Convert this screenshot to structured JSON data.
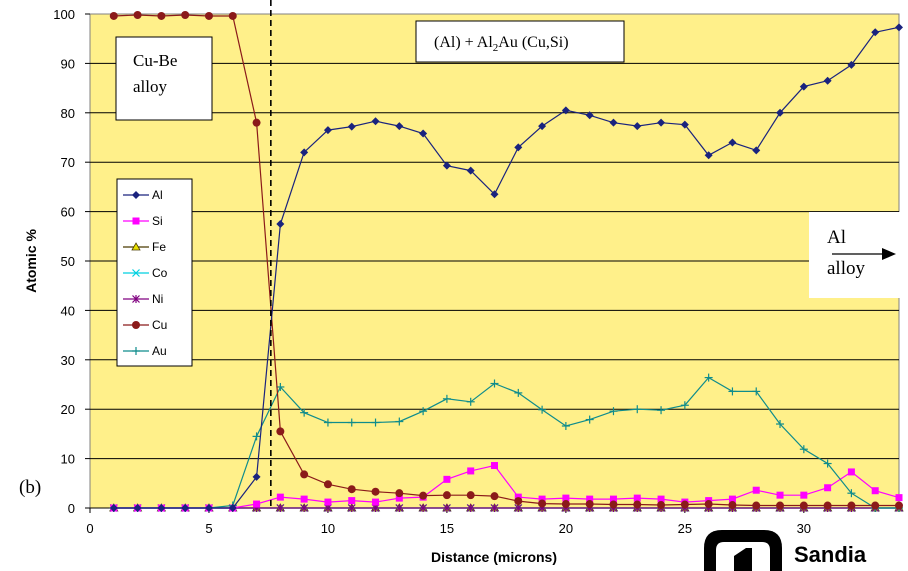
{
  "chart_data": {
    "type": "line",
    "xlabel": "Distance (microns)",
    "ylabel": "Atomic %",
    "xlim": [
      0,
      34
    ],
    "ylim": [
      0,
      100
    ],
    "x_ticks": [
      0,
      5,
      10,
      15,
      20,
      25,
      30
    ],
    "y_ticks": [
      0,
      10,
      20,
      30,
      40,
      50,
      60,
      70,
      80,
      90,
      100
    ],
    "grid": "horizontal",
    "background_color": "#FFF08A",
    "legend_position": "left-middle",
    "boundary_line_x": 7.6,
    "x": [
      1,
      2,
      3,
      4,
      5,
      6,
      7,
      8,
      9,
      10,
      11,
      12,
      13,
      14,
      15,
      16,
      17,
      18,
      19,
      20,
      21,
      22,
      23,
      24,
      25,
      26,
      27,
      28,
      29,
      30,
      31,
      32,
      33,
      34
    ],
    "series": [
      {
        "name": "Al",
        "color": "#1A237E",
        "marker": "diamond",
        "values": [
          0,
          0,
          0,
          0,
          0,
          0,
          6.3,
          57.5,
          72,
          76.5,
          77.2,
          78.3,
          77.3,
          75.8,
          69.3,
          68.3,
          63.5,
          73,
          77.3,
          80.5,
          79.5,
          78,
          77.3,
          78,
          77.6,
          71.4,
          74,
          72.4,
          80,
          85.3,
          86.5,
          89.7,
          96.3,
          97.3
        ]
      },
      {
        "name": "Si",
        "color": "#FF00FF",
        "marker": "square",
        "values": [
          0,
          0,
          0,
          0,
          0,
          0,
          0.8,
          2.2,
          1.8,
          1.2,
          1.5,
          1.2,
          2,
          2.2,
          5.8,
          7.5,
          8.6,
          2.2,
          1.8,
          2,
          1.8,
          1.8,
          2,
          1.8,
          1.2,
          1.5,
          1.8,
          3.6,
          2.6,
          2.6,
          4.1,
          7.3,
          3.5,
          2.1
        ]
      },
      {
        "name": "Fe",
        "color": "#4A3B00",
        "marker": "triangle",
        "values": [
          0,
          0,
          0,
          0,
          0,
          0,
          0,
          0,
          0,
          0,
          0,
          0,
          0,
          0,
          0,
          0,
          0,
          0,
          0,
          0,
          0,
          0,
          0,
          0,
          0,
          0,
          0,
          0,
          0,
          0,
          0,
          0,
          0,
          0
        ]
      },
      {
        "name": "Co",
        "color": "#00D0E0",
        "marker": "x",
        "values": [
          0,
          0,
          0,
          0,
          0,
          0,
          0,
          0,
          0,
          0,
          0,
          0,
          0,
          0,
          0,
          0,
          0,
          0,
          0,
          0,
          0,
          0,
          0,
          0,
          0,
          0,
          0,
          0,
          0,
          0,
          0,
          0,
          0,
          0
        ]
      },
      {
        "name": "Ni",
        "color": "#800080",
        "marker": "star",
        "values": [
          0,
          0,
          0,
          0,
          0,
          0,
          0,
          0,
          0,
          0,
          0,
          0,
          0,
          0,
          0,
          0,
          0,
          0,
          0,
          0,
          0,
          0,
          0,
          0,
          0,
          0,
          0,
          0,
          0,
          0,
          0,
          0,
          0,
          0
        ]
      },
      {
        "name": "Cu",
        "color": "#8B1A1A",
        "marker": "circle",
        "values": [
          99.6,
          99.8,
          99.6,
          99.8,
          99.6,
          99.6,
          78,
          15.5,
          6.8,
          4.8,
          3.8,
          3.3,
          3,
          2.5,
          2.6,
          2.6,
          2.4,
          1.4,
          0.9,
          0.8,
          0.8,
          0.7,
          0.7,
          0.6,
          0.7,
          0.8,
          0.6,
          0.5,
          0.5,
          0.5,
          0.5,
          0.5,
          0.5,
          0.5
        ]
      },
      {
        "name": "Au",
        "color": "#0F8C8C",
        "marker": "plus",
        "values": [
          0,
          0,
          0,
          0,
          0,
          0.5,
          14.5,
          24.5,
          19.3,
          17.3,
          17.3,
          17.3,
          17.5,
          19.6,
          22.1,
          21.5,
          25.2,
          23.3,
          19.9,
          16.6,
          17.9,
          19.6,
          20,
          19.8,
          20.8,
          26.4,
          23.6,
          23.6,
          17,
          11.9,
          9,
          3,
          0,
          0
        ]
      }
    ],
    "annotations": {
      "cube_label": "Cu-Be alloy",
      "phase_prefix": "(Al) + Al",
      "phase_sub": "2",
      "phase_suffix": "Au (Cu,Si)",
      "panel_label": "(b)",
      "al_alloy_top": "Al",
      "al_alloy_bottom": "alloy"
    }
  },
  "logo": {
    "text": "Sandia",
    "icon": "sandia-logo-icon"
  }
}
